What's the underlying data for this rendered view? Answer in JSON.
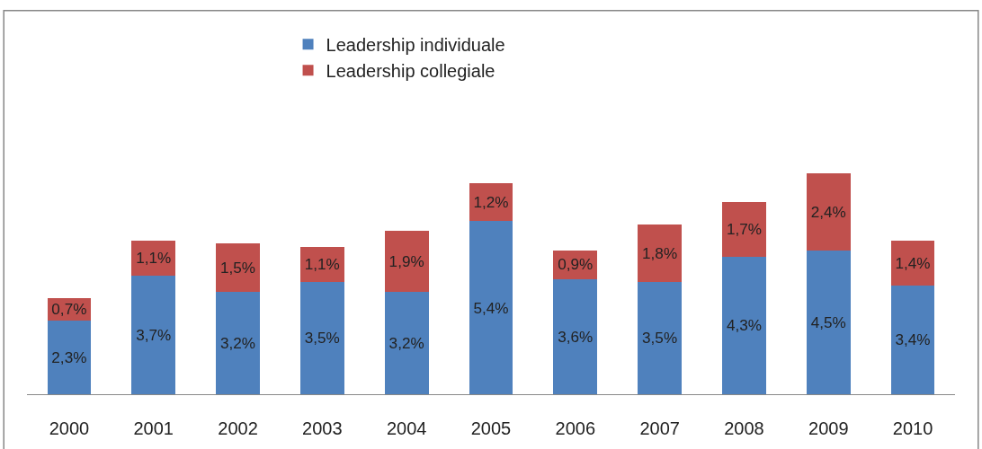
{
  "chart_data": {
    "type": "bar",
    "stacked": true,
    "legend": "top",
    "categories": [
      "2000",
      "2001",
      "2002",
      "2003",
      "2004",
      "2005",
      "2006",
      "2007",
      "2008",
      "2009",
      "2010"
    ],
    "series": [
      {
        "name": "Leadership individuale",
        "color": "#4f81bd",
        "values": [
          2.3,
          3.7,
          3.2,
          3.5,
          3.2,
          5.4,
          3.6,
          3.5,
          4.3,
          4.5,
          3.4
        ],
        "value_labels": [
          "2,3%",
          "3,7%",
          "3,2%",
          "3,5%",
          "3,2%",
          "5,4%",
          "3,6%",
          "3,5%",
          "4,3%",
          "4,5%",
          "3,4%"
        ]
      },
      {
        "name": "Leadership collegiale",
        "color": "#c0504d",
        "values": [
          0.7,
          1.1,
          1.5,
          1.1,
          1.9,
          1.2,
          0.9,
          1.8,
          1.7,
          2.4,
          1.4
        ],
        "value_labels": [
          "0,7%",
          "1,1%",
          "1,5%",
          "1,1%",
          "1,9%",
          "1,2%",
          "0,9%",
          "1,8%",
          "1,7%",
          "2,4%",
          "1,4%"
        ]
      }
    ]
  }
}
